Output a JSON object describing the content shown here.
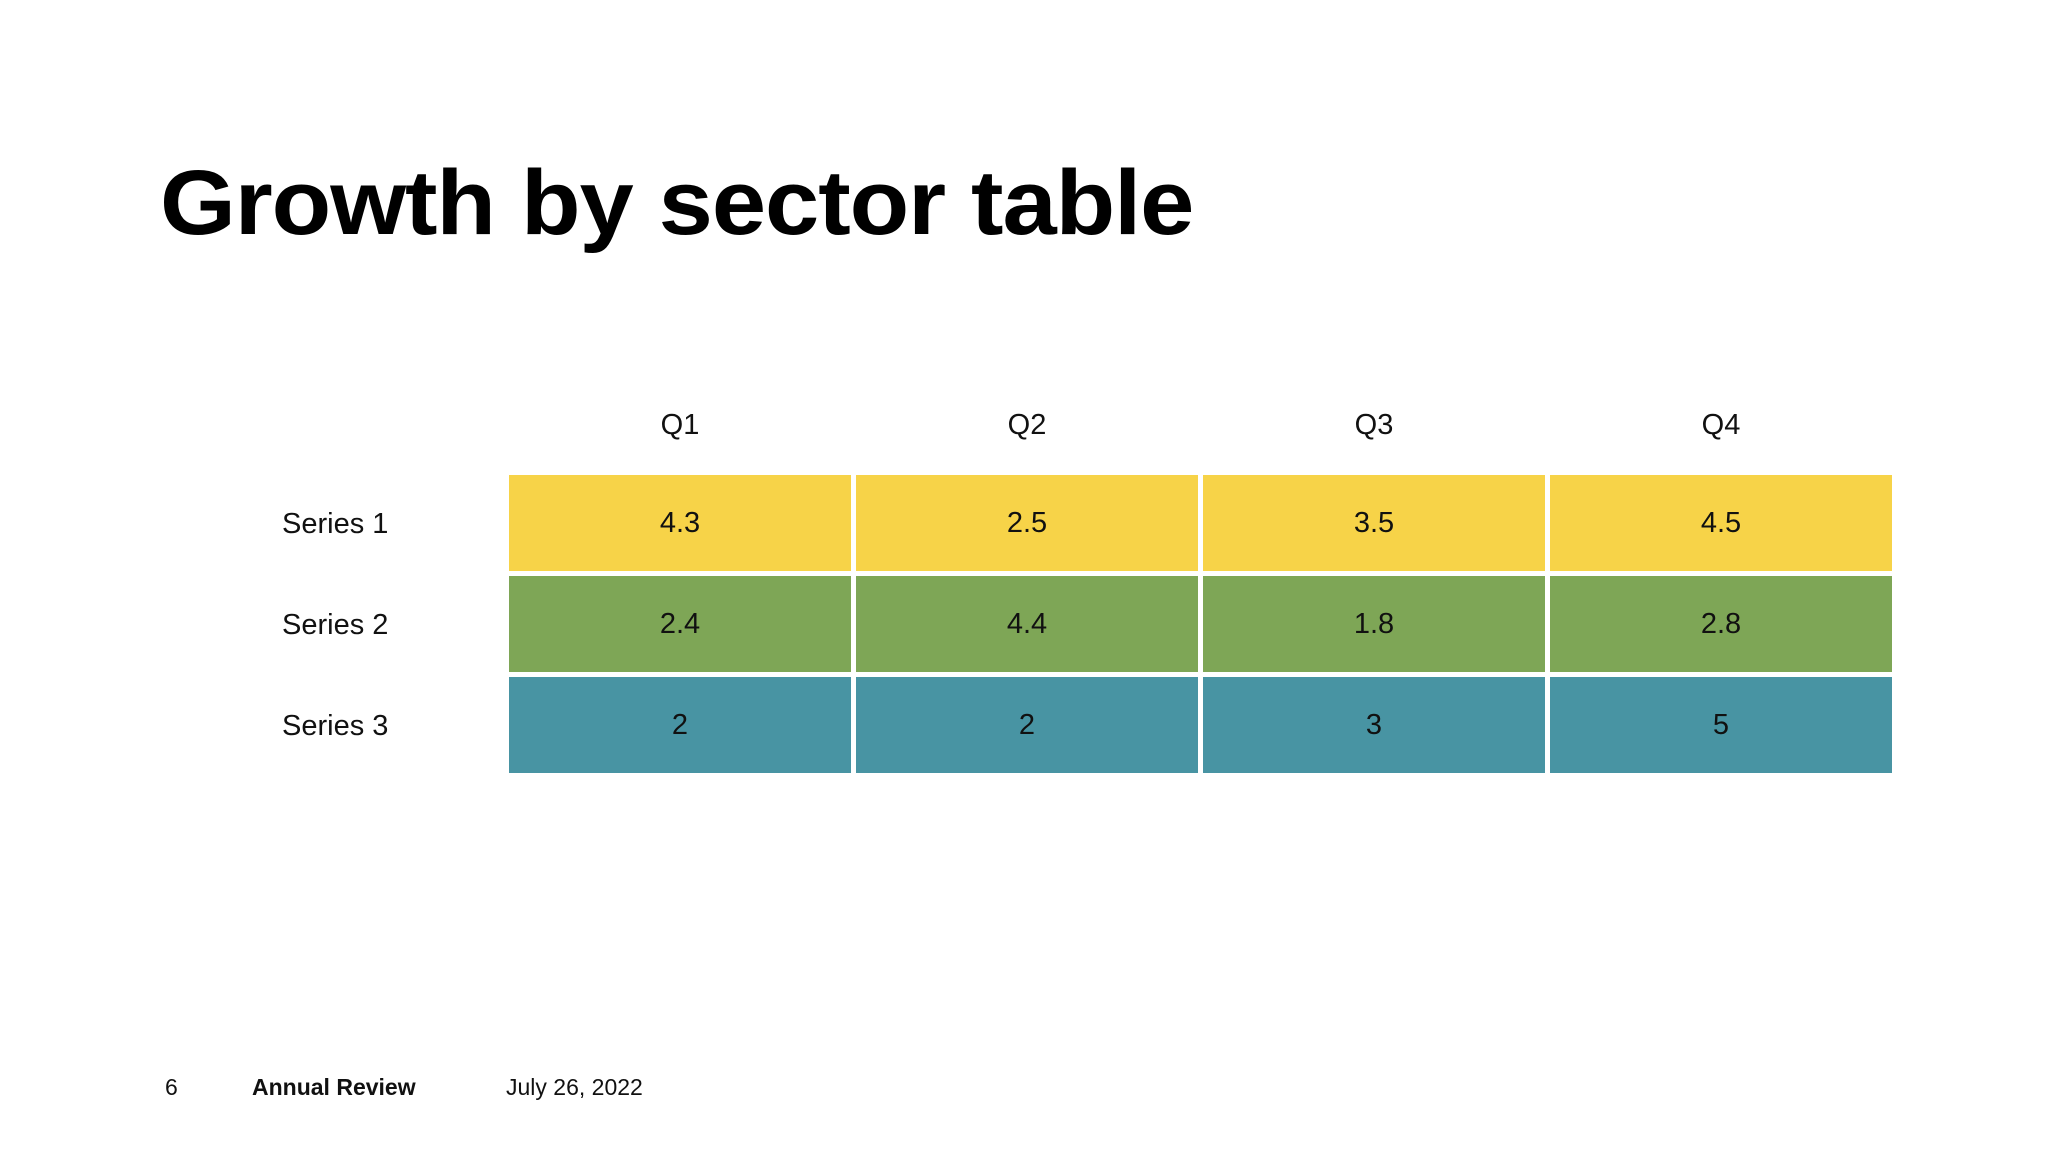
{
  "slide": {
    "title": "Growth by sector table"
  },
  "table": {
    "columns": [
      "Q1",
      "Q2",
      "Q3",
      "Q4"
    ],
    "rows": [
      {
        "label": "Series 1",
        "color": "#F7D348",
        "values": [
          "4.3",
          "2.5",
          "3.5",
          "4.5"
        ]
      },
      {
        "label": "Series 2",
        "color": "#7EA656",
        "values": [
          "2.4",
          "4.4",
          "1.8",
          "2.8"
        ]
      },
      {
        "label": "Series 3",
        "color": "#4894A3",
        "values": [
          "2",
          "2",
          "3",
          "5"
        ]
      }
    ]
  },
  "footer": {
    "page_number": "6",
    "presentation_title": "Annual Review",
    "date": "July 26, 2022"
  }
}
